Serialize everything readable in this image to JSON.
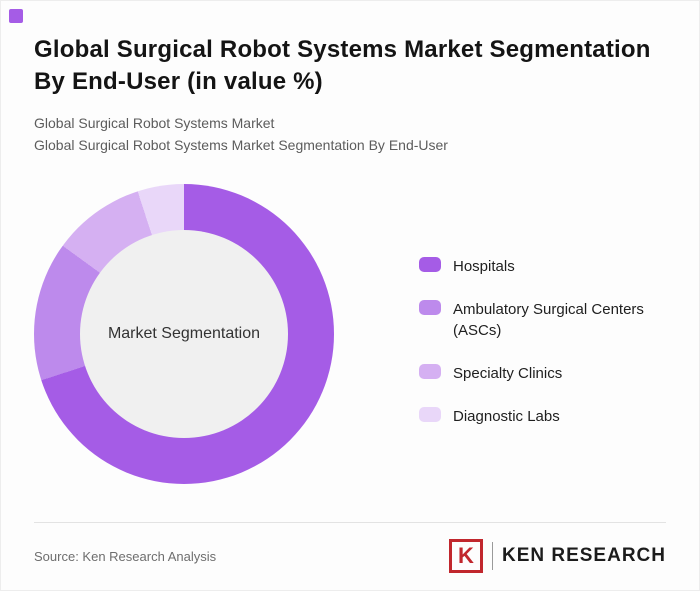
{
  "page": {
    "accent_color": "#a55ce6"
  },
  "header": {
    "title": "Global Surgical Robot Systems Market Segmentation By End-User (in value %)",
    "subtitle1": "Global Surgical Robot Systems Market",
    "subtitle2": "Global Surgical Robot Systems Market Segmentation By End-User"
  },
  "chart_data": {
    "type": "pie",
    "donut": true,
    "title": "Global Surgical Robot Systems Market Segmentation By End-User (in value %)",
    "center_label": "Market Segmentation",
    "categories": [
      "Hospitals",
      "Ambulatory Surgical Centers (ASCs)",
      "Specialty Clinics",
      "Diagnostic Labs"
    ],
    "values": [
      70,
      15,
      10,
      5
    ],
    "colors": [
      "#a55ce6",
      "#bd8aec",
      "#d5b0f2",
      "#e9d7f9"
    ],
    "hole_color": "#f0f0f0",
    "legend_position": "right",
    "start_angle_deg": 0,
    "direction": "clockwise"
  },
  "footer": {
    "source": "Source: Ken Research Analysis",
    "logo_letter": "K",
    "logo_text": "KEN RESEARCH"
  }
}
